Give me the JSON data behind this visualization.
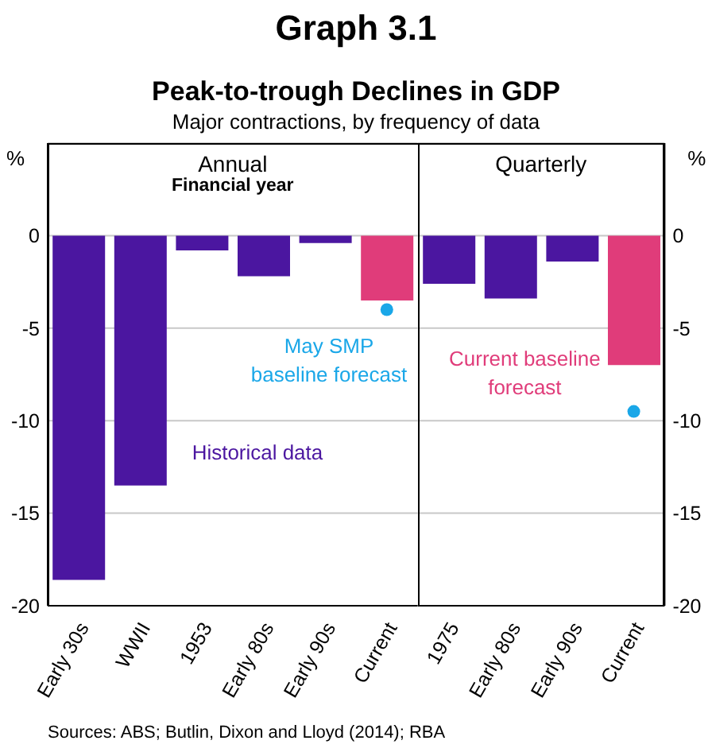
{
  "chart_data": [
    {
      "type": "bar",
      "title": "Annual",
      "subtitle": "Financial year",
      "ylabel": "%",
      "categories": [
        "Early 30s",
        "WWII",
        "1953",
        "Early 80s",
        "Early 90s",
        "Current"
      ],
      "stacked": true,
      "ylim": [
        -20,
        5
      ],
      "yticks": [
        -20,
        -15,
        -10,
        -5,
        0
      ],
      "grid": "y",
      "marker": "circle",
      "series": [
        {
          "name": "Historical data",
          "color": "#4b16a0",
          "values": [
            -18.6,
            -13.5,
            -0.8,
            -2.2,
            -0.4,
            null
          ]
        },
        {
          "color": "#e03c7a",
          "values": [
            null,
            null,
            null,
            null,
            null,
            -3.5
          ]
        },
        {
          "name": "May SMP baseline forecast",
          "type": "scatter",
          "color": "#1aa7e8",
          "values": [
            null,
            null,
            null,
            null,
            null,
            -4.0
          ]
        }
      ],
      "annotations": [
        "Graph 3.1",
        "Peak-to-trough Declines in GDP",
        "Major contractions, by frequency of data",
        "Sources: ABS; Butlin, Dixon and Lloyd (2014); RBA"
      ]
    },
    {
      "type": "bar",
      "title": "Quarterly",
      "ylabel": "%",
      "categories": [
        "1975",
        "Early 80s",
        "Early 90s",
        "Current"
      ],
      "stacked": true,
      "ylim": [
        -20,
        5
      ],
      "yticks": [
        -20,
        -15,
        -10,
        -5,
        0
      ],
      "grid": "y",
      "marker": "circle",
      "series": [
        {
          "color": "#4b16a0",
          "values": [
            -2.6,
            -3.4,
            -1.4,
            null
          ]
        },
        {
          "name": "Current baseline forecast",
          "color": "#e03c7a",
          "values": [
            null,
            null,
            null,
            -7.0
          ]
        },
        {
          "type": "scatter",
          "color": "#1aa7e8",
          "values": [
            null,
            null,
            null,
            -9.5
          ]
        }
      ]
    }
  ]
}
